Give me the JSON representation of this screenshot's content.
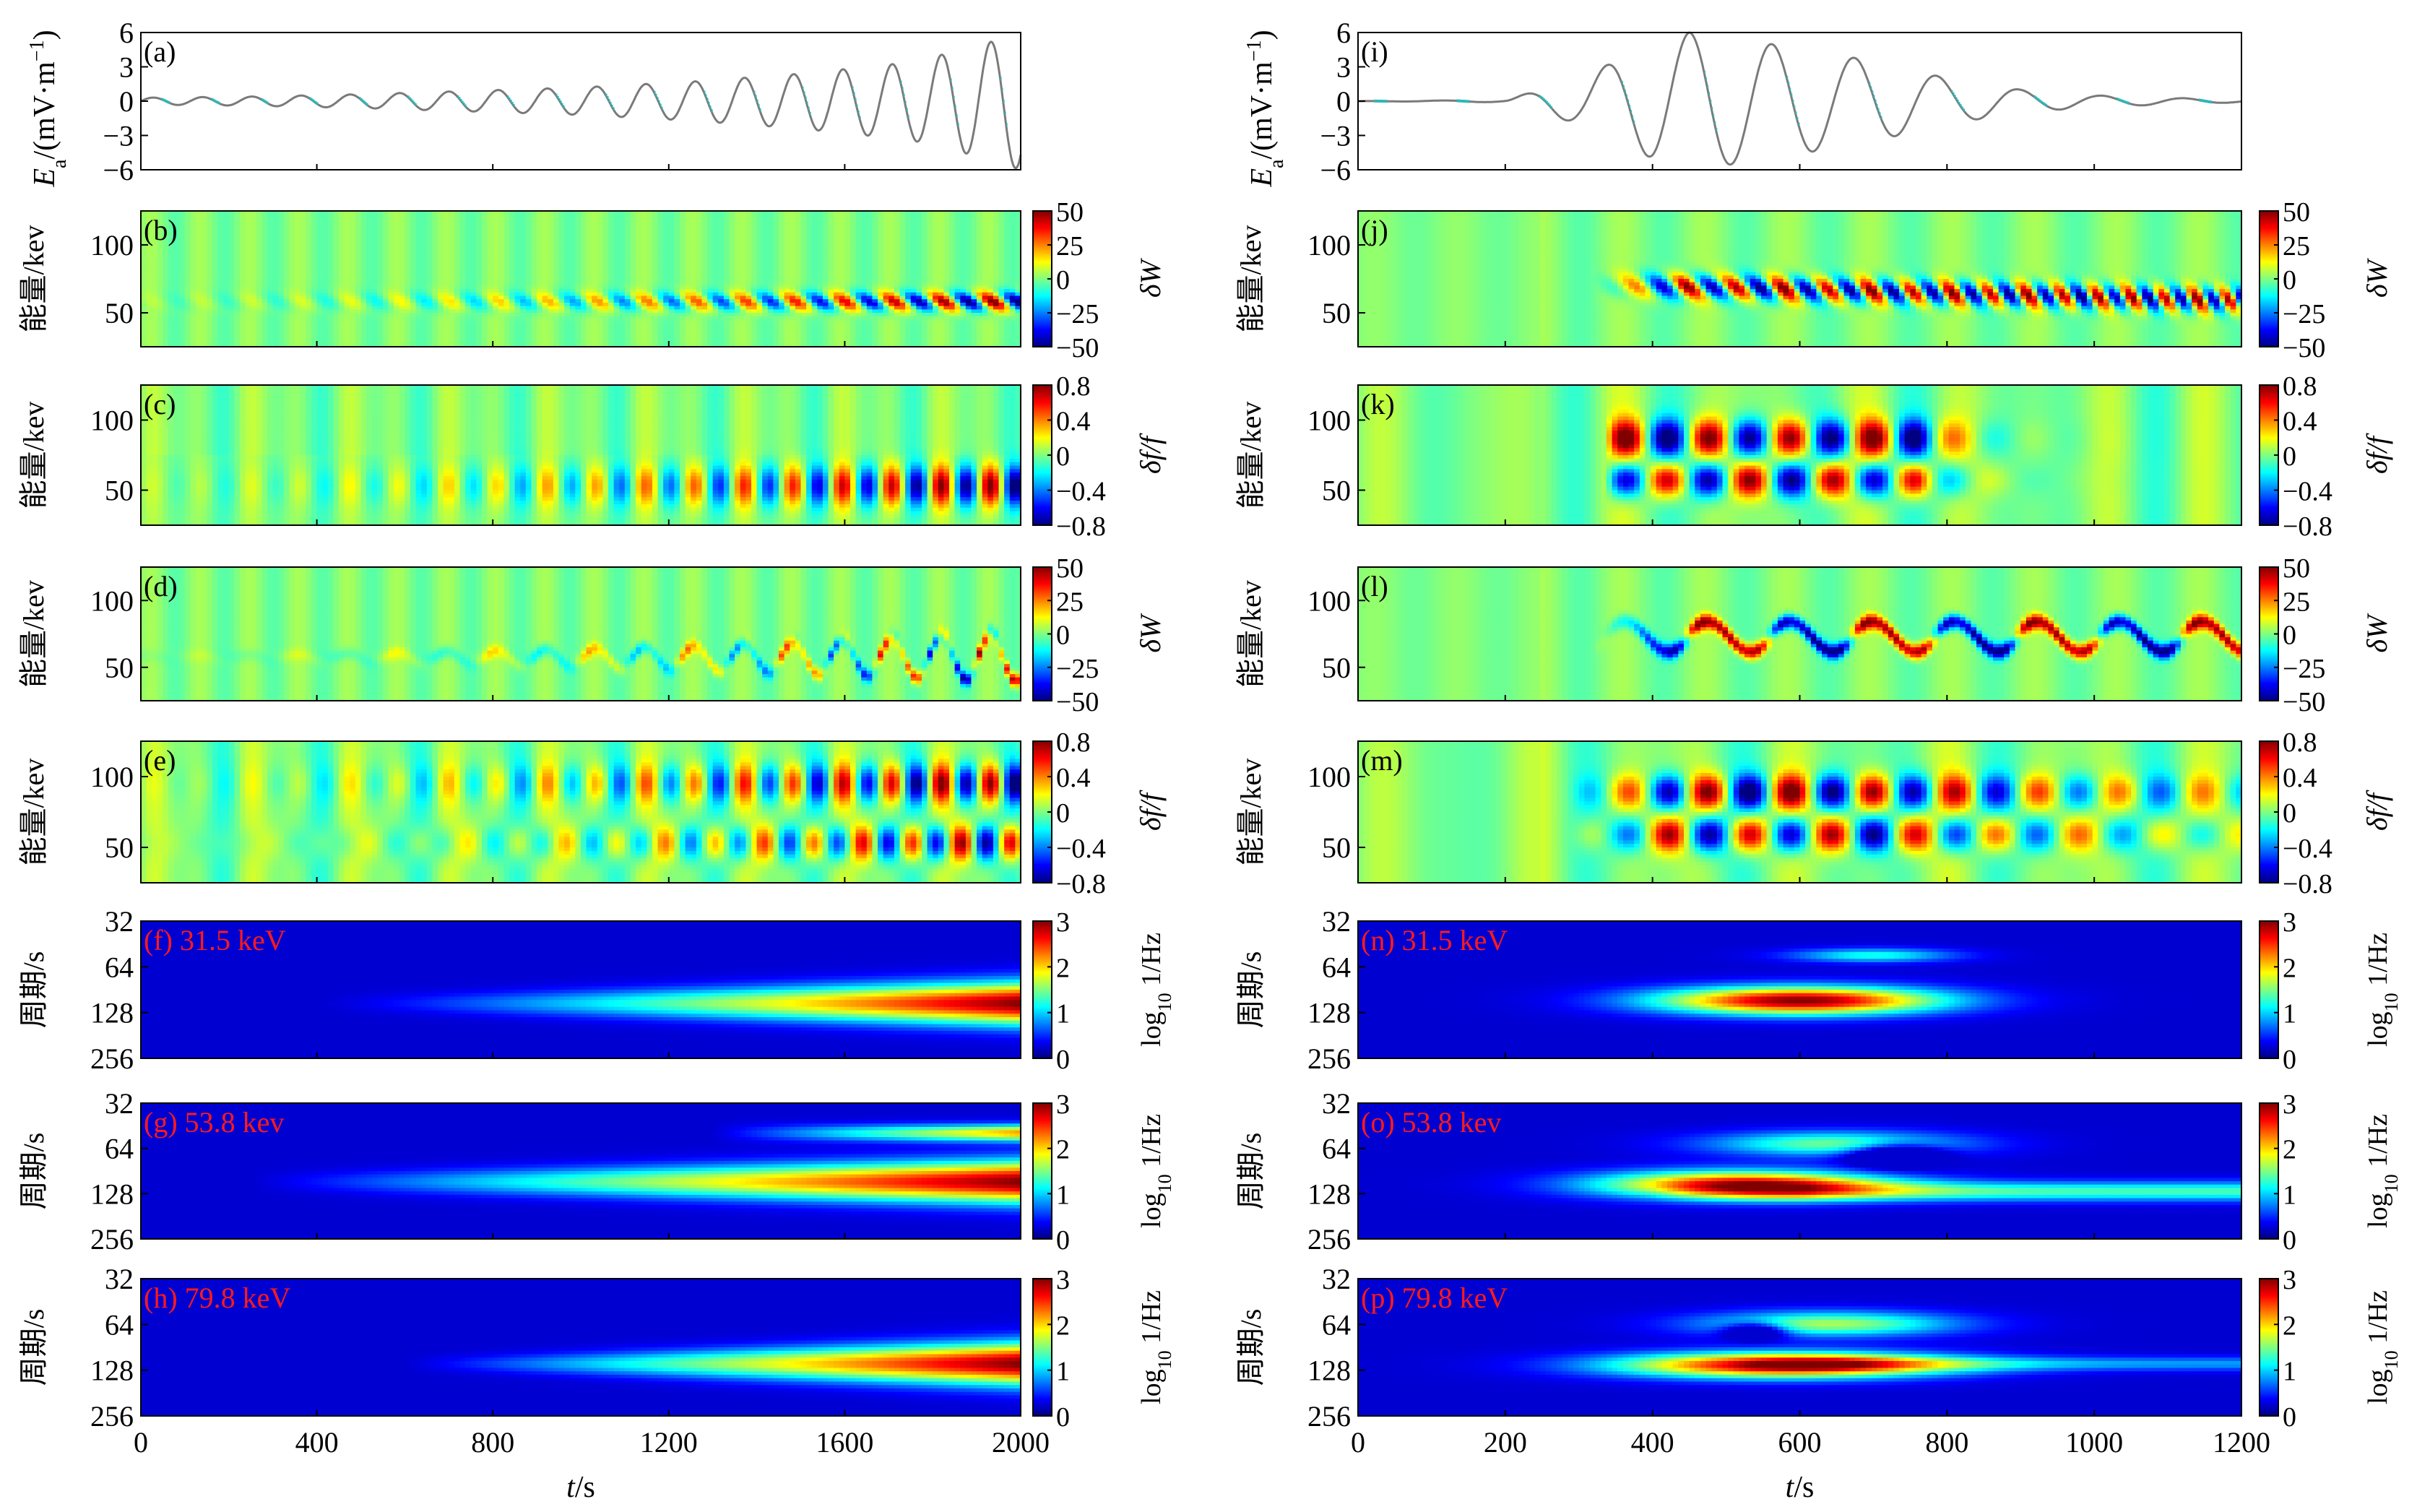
{
  "chart_data": [
    {
      "type": "line",
      "panel": "(a)",
      "column": "left",
      "ylabel_main": "E",
      "ylabel_sub": "a",
      "ylabel_unit": "/(mV·m",
      "ylabel_exp": "−1",
      "ylabel_close": ")",
      "xlim": [
        0,
        2000
      ],
      "ylim": [
        -6,
        6
      ],
      "yticks": [
        "6",
        "3",
        "0",
        "−3",
        "−6"
      ],
      "series": [
        {
          "x": [
            0,
            250,
            500,
            750,
            1000,
            1250,
            1500,
            1750,
            1900,
            2000
          ],
          "y_amplitude": [
            0.3,
            0.4,
            0.6,
            0.9,
            1.2,
            1.7,
            2.4,
            3.4,
            4.8,
            6.0
          ]
        }
      ],
      "wave_period_s": 112
    },
    {
      "type": "heatmap",
      "panel": "(b)",
      "column": "left",
      "ylabel": "能量/kev",
      "yticks": [
        "100",
        "50"
      ],
      "ylim": [
        25,
        125
      ],
      "xlim": [
        0,
        2000
      ],
      "colorbar": {
        "label": "δW",
        "ticks": [
          "50",
          "25",
          "0",
          "−25",
          "−50"
        ],
        "range": [
          -50,
          50
        ]
      }
    },
    {
      "type": "heatmap",
      "panel": "(c)",
      "column": "left",
      "ylabel": "能量/kev",
      "yticks": [
        "100",
        "50"
      ],
      "ylim": [
        25,
        125
      ],
      "xlim": [
        0,
        2000
      ],
      "colorbar": {
        "label": "δf/f",
        "ticks": [
          "0.8",
          "0.4",
          "0",
          "−0.4",
          "−0.8"
        ],
        "range": [
          -0.8,
          0.8
        ]
      }
    },
    {
      "type": "heatmap",
      "panel": "(d)",
      "column": "left",
      "ylabel": "能量/kev",
      "yticks": [
        "100",
        "50"
      ],
      "ylim": [
        25,
        125
      ],
      "xlim": [
        0,
        2000
      ],
      "colorbar": {
        "label": "δW",
        "ticks": [
          "50",
          "25",
          "0",
          "−25",
          "−50"
        ],
        "range": [
          -50,
          50
        ]
      }
    },
    {
      "type": "heatmap",
      "panel": "(e)",
      "column": "left",
      "ylabel": "能量/kev",
      "yticks": [
        "100",
        "50"
      ],
      "ylim": [
        25,
        125
      ],
      "xlim": [
        0,
        2000
      ],
      "colorbar": {
        "label": "δf/f",
        "ticks": [
          "0.8",
          "0.4",
          "0",
          "−0.4",
          "−0.8"
        ],
        "range": [
          -0.8,
          0.8
        ]
      }
    },
    {
      "type": "heatmap",
      "panel": "(f)",
      "annotation": "(f) 31.5 keV",
      "column": "left",
      "ylabel": "周期/s",
      "yticks": [
        "32",
        "64",
        "128",
        "256"
      ],
      "xlim": [
        0,
        2000
      ],
      "colorbar": {
        "label": "log10 1/Hz",
        "ticks": [
          "3",
          "2",
          "1",
          "0"
        ],
        "range": [
          0,
          3
        ]
      }
    },
    {
      "type": "heatmap",
      "panel": "(g)",
      "annotation": "(g) 53.8 kev",
      "column": "left",
      "ylabel": "周期/s",
      "yticks": [
        "32",
        "64",
        "128",
        "256"
      ],
      "xlim": [
        0,
        2000
      ],
      "colorbar": {
        "label": "log10 1/Hz",
        "ticks": [
          "3",
          "2",
          "1",
          "0"
        ],
        "range": [
          0,
          3
        ]
      }
    },
    {
      "type": "heatmap",
      "panel": "(h)",
      "annotation": "(h) 79.8 keV",
      "column": "left",
      "ylabel": "周期/s",
      "yticks": [
        "32",
        "64",
        "128",
        "256"
      ],
      "xlim": [
        0,
        2000
      ],
      "xlabel": "t/s",
      "xticks": [
        "0",
        "400",
        "800",
        "1200",
        "1600",
        "2000"
      ],
      "colorbar": {
        "label": "log10 1/Hz",
        "ticks": [
          "3",
          "2",
          "1",
          "0"
        ],
        "range": [
          0,
          3
        ]
      }
    },
    {
      "type": "line",
      "panel": "(i)",
      "column": "right",
      "ylabel_main": "E",
      "ylabel_sub": "a",
      "ylabel_unit": "/(mV·m",
      "ylabel_exp": "−1",
      "ylabel_close": ")",
      "xlim": [
        0,
        1200
      ],
      "ylim": [
        -6,
        6
      ],
      "yticks": [
        "6",
        "3",
        "0",
        "−3",
        "−6"
      ],
      "series": [
        {
          "x": [
            0,
            200,
            300,
            400,
            450,
            500,
            600,
            700,
            800,
            900,
            1000,
            1200
          ],
          "y_amplitude": [
            0,
            0.1,
            2.0,
            5.0,
            6.0,
            5.6,
            4.6,
            3.5,
            2.0,
            1.0,
            0.5,
            0.1
          ]
        }
      ],
      "wave_period_s": 112
    },
    {
      "type": "heatmap",
      "panel": "(j)",
      "column": "right",
      "ylabel": "能量/kev",
      "yticks": [
        "100",
        "50"
      ],
      "ylim": [
        25,
        125
      ],
      "xlim": [
        0,
        1200
      ],
      "colorbar": {
        "label": "δW",
        "ticks": [
          "50",
          "25",
          "0",
          "−25",
          "−50"
        ],
        "range": [
          -50,
          50
        ]
      }
    },
    {
      "type": "heatmap",
      "panel": "(k)",
      "column": "right",
      "ylabel": "能量/kev",
      "yticks": [
        "100",
        "50"
      ],
      "ylim": [
        25,
        125
      ],
      "xlim": [
        0,
        1200
      ],
      "colorbar": {
        "label": "δf/f",
        "ticks": [
          "0.8",
          "0.4",
          "0",
          "−0.4",
          "−0.8"
        ],
        "range": [
          -0.8,
          0.8
        ]
      }
    },
    {
      "type": "heatmap",
      "panel": "(l)",
      "column": "right",
      "ylabel": "能量/kev",
      "yticks": [
        "100",
        "50"
      ],
      "ylim": [
        25,
        125
      ],
      "xlim": [
        0,
        1200
      ],
      "colorbar": {
        "label": "δW",
        "ticks": [
          "50",
          "25",
          "0",
          "−25",
          "−50"
        ],
        "range": [
          -50,
          50
        ]
      }
    },
    {
      "type": "heatmap",
      "panel": "(m)",
      "column": "right",
      "ylabel": "能量/kev",
      "yticks": [
        "100",
        "50"
      ],
      "ylim": [
        25,
        125
      ],
      "xlim": [
        0,
        1200
      ],
      "colorbar": {
        "label": "δf/f",
        "ticks": [
          "0.8",
          "0.4",
          "0",
          "−0.4",
          "−0.8"
        ],
        "range": [
          -0.8,
          0.8
        ]
      }
    },
    {
      "type": "heatmap",
      "panel": "(n)",
      "annotation": "(n) 31.5 keV",
      "column": "right",
      "ylabel": "周期/s",
      "yticks": [
        "32",
        "64",
        "128",
        "256"
      ],
      "xlim": [
        0,
        1200
      ],
      "colorbar": {
        "label": "log10 1/Hz",
        "ticks": [
          "3",
          "2",
          "1",
          "0"
        ],
        "range": [
          0,
          3
        ]
      }
    },
    {
      "type": "heatmap",
      "panel": "(o)",
      "annotation": "(o) 53.8 kev",
      "column": "right",
      "ylabel": "周期/s",
      "yticks": [
        "32",
        "64",
        "128",
        "256"
      ],
      "xlim": [
        0,
        1200
      ],
      "colorbar": {
        "label": "log10 1/Hz",
        "ticks": [
          "3",
          "2",
          "1",
          "0"
        ],
        "range": [
          0,
          3
        ]
      }
    },
    {
      "type": "heatmap",
      "panel": "(p)",
      "annotation": "(p) 79.8 keV",
      "column": "right",
      "ylabel": "周期/s",
      "yticks": [
        "32",
        "64",
        "128",
        "256"
      ],
      "xlim": [
        0,
        1200
      ],
      "xlabel": "t/s",
      "xticks": [
        "0",
        "200",
        "400",
        "600",
        "800",
        "1000",
        "1200"
      ],
      "colorbar": {
        "label": "log10 1/Hz",
        "ticks": [
          "3",
          "2",
          "1",
          "0"
        ],
        "range": [
          0,
          3
        ]
      }
    }
  ],
  "colors": {
    "axis": "#000000",
    "line_wave": "#7a7a7a",
    "line_highlight": "#2fb6b6",
    "annotation_red": "#ff1a1a",
    "spectrum_bg": "#00007f",
    "jet": [
      "#00007f",
      "#0000ff",
      "#007fff",
      "#00ffff",
      "#7fff7f",
      "#ffff00",
      "#ff7f00",
      "#ff0000",
      "#7f0000"
    ]
  }
}
